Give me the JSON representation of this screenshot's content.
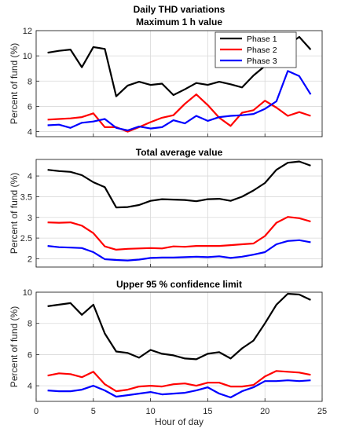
{
  "figure": {
    "xlabel": "Hour of day"
  },
  "legend": {
    "entries": [
      "Phase 1",
      "Phase 2",
      "Phase 3"
    ]
  },
  "colors": {
    "Phase 1": "#000000",
    "Phase 2": "#ff0000",
    "Phase 3": "#0000ff",
    "grid": "#d9d9d9",
    "axis": "#262626"
  },
  "chart_data": [
    {
      "type": "line",
      "title": "Daily THD variations",
      "subtitle": "Maximum 1 h value",
      "xlabel": "",
      "ylabel": "Percent of fund (%)",
      "xlim": [
        0,
        25
      ],
      "ylim": [
        3.6,
        12
      ],
      "xticks": [
        0,
        5,
        10,
        15,
        20,
        25
      ],
      "yticks": [
        4,
        6,
        8,
        10,
        12
      ],
      "grid": true,
      "legend": "top-right",
      "x": [
        1,
        2,
        3,
        4,
        5,
        6,
        7,
        8,
        9,
        10,
        11,
        12,
        13,
        14,
        15,
        16,
        17,
        18,
        19,
        20,
        21,
        22,
        23,
        24
      ],
      "series": [
        {
          "name": "Phase 1",
          "values": [
            10.25,
            10.4,
            10.5,
            9.1,
            10.7,
            10.55,
            6.8,
            7.65,
            7.95,
            7.7,
            7.8,
            6.9,
            7.35,
            7.85,
            7.7,
            7.95,
            7.75,
            7.5,
            8.45,
            9.2,
            11.2,
            10.85,
            11.5,
            10.5
          ]
        },
        {
          "name": "Phase 2",
          "values": [
            4.95,
            5.0,
            5.05,
            5.15,
            5.45,
            4.35,
            4.35,
            4.0,
            4.35,
            4.75,
            5.1,
            5.3,
            6.2,
            6.95,
            6.1,
            5.1,
            4.45,
            5.5,
            5.7,
            6.45,
            5.9,
            5.25,
            5.55,
            5.25
          ]
        },
        {
          "name": "Phase 3",
          "values": [
            4.5,
            4.55,
            4.3,
            4.7,
            4.8,
            5.0,
            4.3,
            4.1,
            4.4,
            4.25,
            4.35,
            4.9,
            4.65,
            5.25,
            4.85,
            5.15,
            5.25,
            5.3,
            5.4,
            5.8,
            6.4,
            8.8,
            8.4,
            6.95
          ]
        }
      ]
    },
    {
      "type": "line",
      "title": "Total average value",
      "xlabel": "",
      "ylabel": "Percent of fund (%)",
      "xlim": [
        0,
        25
      ],
      "ylim": [
        1.8,
        4.4
      ],
      "xticks": [
        0,
        5,
        10,
        15,
        20,
        25
      ],
      "yticks": [
        2,
        2.5,
        3,
        3.5,
        4
      ],
      "grid": true,
      "x": [
        1,
        2,
        3,
        4,
        5,
        6,
        7,
        8,
        9,
        10,
        11,
        12,
        13,
        14,
        15,
        16,
        17,
        18,
        19,
        20,
        21,
        22,
        23,
        24
      ],
      "series": [
        {
          "name": "Phase 1",
          "values": [
            4.15,
            4.12,
            4.1,
            4.02,
            3.85,
            3.73,
            3.24,
            3.25,
            3.3,
            3.4,
            3.44,
            3.43,
            3.42,
            3.39,
            3.44,
            3.45,
            3.4,
            3.5,
            3.65,
            3.83,
            4.15,
            4.32,
            4.35,
            4.25
          ]
        },
        {
          "name": "Phase 2",
          "values": [
            2.88,
            2.87,
            2.88,
            2.8,
            2.62,
            2.3,
            2.22,
            2.24,
            2.25,
            2.26,
            2.25,
            2.3,
            2.29,
            2.31,
            2.31,
            2.31,
            2.33,
            2.35,
            2.37,
            2.55,
            2.87,
            3.01,
            2.98,
            2.9
          ]
        },
        {
          "name": "Phase 3",
          "values": [
            2.31,
            2.28,
            2.27,
            2.26,
            2.16,
            1.99,
            1.97,
            1.96,
            1.98,
            2.02,
            2.03,
            2.03,
            2.04,
            2.05,
            2.04,
            2.06,
            2.02,
            2.05,
            2.1,
            2.16,
            2.35,
            2.43,
            2.45,
            2.4
          ]
        }
      ]
    },
    {
      "type": "line",
      "title": "Upper 95 % confidence limit",
      "xlabel": "Hour of day",
      "ylabel": "Percent of fund (%)",
      "xlim": [
        0,
        25
      ],
      "ylim": [
        3,
        10
      ],
      "xticks": [
        0,
        5,
        10,
        15,
        20,
        25
      ],
      "yticks": [
        4,
        6,
        8,
        10
      ],
      "grid": true,
      "x": [
        1,
        2,
        3,
        4,
        5,
        6,
        7,
        8,
        9,
        10,
        11,
        12,
        13,
        14,
        15,
        16,
        17,
        18,
        19,
        20,
        21,
        22,
        23,
        24
      ],
      "series": [
        {
          "name": "Phase 1",
          "values": [
            9.1,
            9.2,
            9.3,
            8.55,
            9.2,
            7.35,
            6.2,
            6.1,
            5.8,
            6.3,
            6.05,
            5.95,
            5.75,
            5.7,
            6.05,
            6.15,
            5.75,
            6.4,
            6.9,
            8.0,
            9.2,
            9.9,
            9.85,
            9.5
          ]
        },
        {
          "name": "Phase 2",
          "values": [
            4.65,
            4.8,
            4.75,
            4.55,
            4.9,
            4.1,
            3.65,
            3.75,
            3.95,
            4.0,
            3.95,
            4.1,
            4.15,
            4.0,
            4.2,
            4.2,
            3.95,
            3.95,
            4.05,
            4.6,
            4.95,
            4.9,
            4.85,
            4.7
          ]
        },
        {
          "name": "Phase 3",
          "values": [
            3.7,
            3.65,
            3.65,
            3.75,
            4.0,
            3.7,
            3.3,
            3.4,
            3.5,
            3.6,
            3.45,
            3.5,
            3.55,
            3.7,
            3.9,
            3.5,
            3.25,
            3.65,
            3.9,
            4.3,
            4.3,
            4.35,
            4.3,
            4.35
          ]
        }
      ]
    }
  ]
}
